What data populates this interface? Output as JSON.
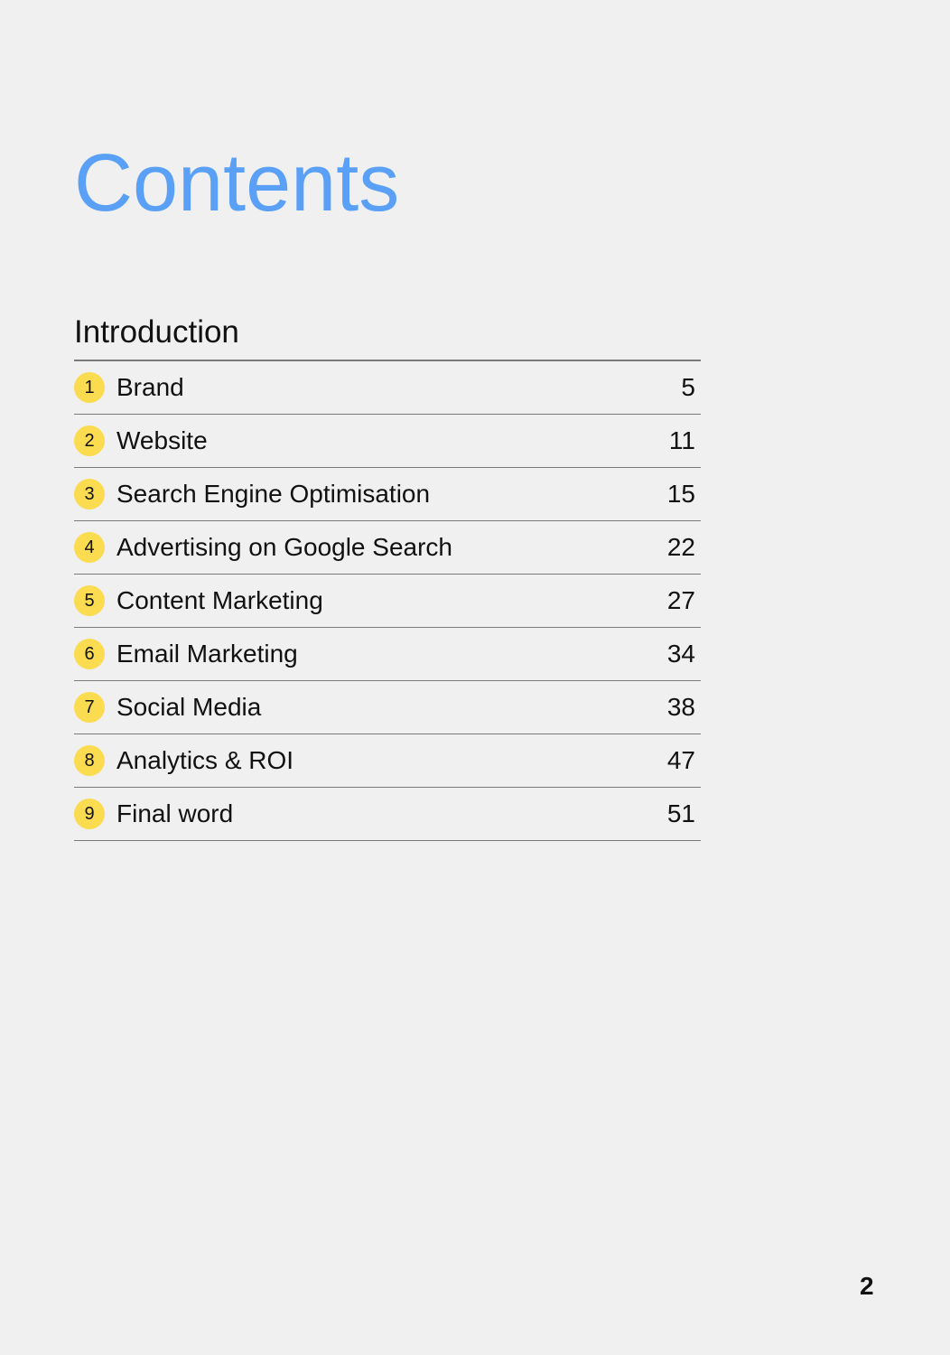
{
  "title": "Contents",
  "section": "Introduction",
  "colors": {
    "accent": "#5aa0f7",
    "badge": "#fbdb4f",
    "background": "#f0f0f0"
  },
  "items": [
    {
      "num": "1",
      "label": "Brand",
      "page": "5"
    },
    {
      "num": "2",
      "label": "Website",
      "page": "11"
    },
    {
      "num": "3",
      "label": "Search Engine Optimisation",
      "page": "15"
    },
    {
      "num": "4",
      "label": "Advertising on Google Search",
      "page": "22"
    },
    {
      "num": "5",
      "label": "Content Marketing",
      "page": "27"
    },
    {
      "num": "6",
      "label": "Email Marketing",
      "page": "34"
    },
    {
      "num": "7",
      "label": "Social Media",
      "page": "38"
    },
    {
      "num": "8",
      "label": "Analytics & ROI",
      "page": "47"
    },
    {
      "num": "9",
      "label": "Final word",
      "page": "51"
    }
  ],
  "page_number": "2"
}
